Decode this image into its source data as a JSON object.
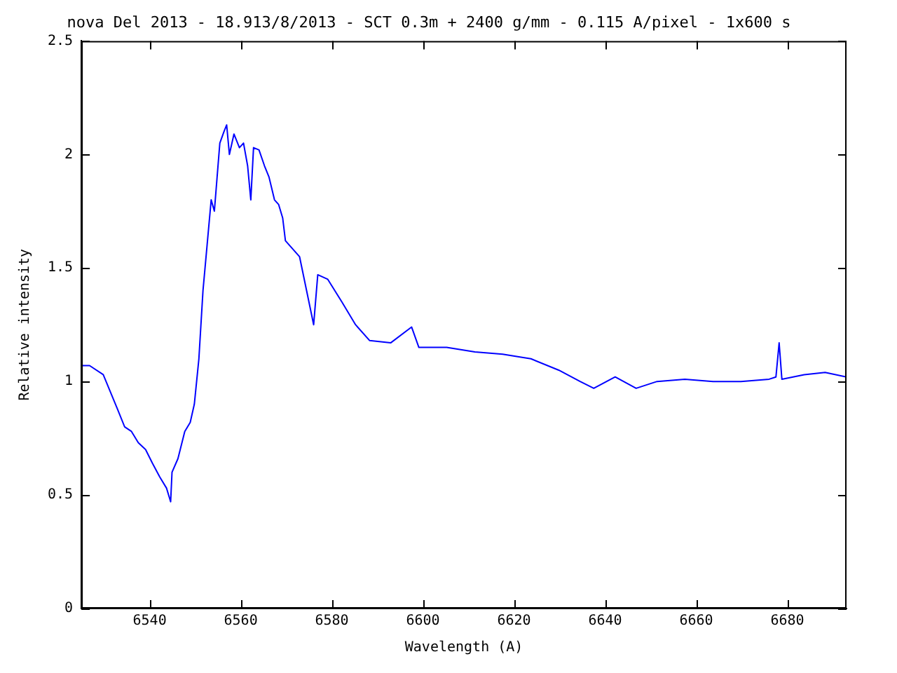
{
  "chart_data": {
    "type": "line",
    "title": "nova Del 2013 - 18.913/8/2013 - SCT 0.3m + 2400 g/mm - 0.115 A/pixel - 1x600 s",
    "xlabel": "Wavelength (A)",
    "ylabel": "Relative intensity",
    "x": [
      6525,
      6526.8,
      6529.8,
      6532.9,
      6534.5,
      6536.0,
      6537.5,
      6539.1,
      6540.6,
      6542.2,
      6543.7,
      6544.6,
      6544.9,
      6546.2,
      6547.7,
      6548.9,
      6549.8,
      6550.8,
      6551.7,
      6552.6,
      6553.5,
      6554.2,
      6554.8,
      6555.4,
      6556.3,
      6556.9,
      6557.5,
      6558.5,
      6559.7,
      6560.6,
      6561.5,
      6562.2,
      6562.8,
      6564.0,
      6565.2,
      6566.2,
      6567.4,
      6568.3,
      6569.2,
      6569.8,
      6572.9,
      6576.0,
      6576.9,
      6579.1,
      6582.2,
      6585.2,
      6588.3,
      6592.9,
      6597.5,
      6599.1,
      6605.2,
      6611.4,
      6617.5,
      6623.7,
      6629.8,
      6634.5,
      6637.5,
      6642.2,
      6646.8,
      6651.4,
      6657.5,
      6663.7,
      6669.8,
      6676.0,
      6677.5,
      6678.2,
      6678.8,
      6683.7,
      6688.3,
      6693
    ],
    "series": [
      {
        "color": "#0000ff",
        "values": [
          1.07,
          1.07,
          1.03,
          0.88,
          0.8,
          0.78,
          0.73,
          0.7,
          0.64,
          0.58,
          0.53,
          0.47,
          0.6,
          0.66,
          0.78,
          0.82,
          0.9,
          1.1,
          1.4,
          1.6,
          1.8,
          1.75,
          1.9,
          2.05,
          2.1,
          2.13,
          2.0,
          2.09,
          2.03,
          2.05,
          1.95,
          1.8,
          2.03,
          2.02,
          1.95,
          1.9,
          1.8,
          1.78,
          1.72,
          1.62,
          1.55,
          1.25,
          1.47,
          1.45,
          1.35,
          1.25,
          1.18,
          1.17,
          1.24,
          1.15,
          1.15,
          1.13,
          1.12,
          1.1,
          1.05,
          1.0,
          0.97,
          1.02,
          0.97,
          1.0,
          1.01,
          1.0,
          1.0,
          1.01,
          1.02,
          1.17,
          1.01,
          1.03,
          1.04,
          1.02
        ]
      }
    ],
    "xlim": [
      6525,
      6693
    ],
    "xticks": [
      6540,
      6560,
      6580,
      6600,
      6620,
      6640,
      6660,
      6680
    ],
    "ylim": [
      0,
      2.5
    ],
    "yticks": [
      0,
      0.5,
      1,
      1.5,
      2,
      2.5
    ],
    "grid": false,
    "legend": false,
    "marker": "none",
    "line_style": "solid"
  }
}
